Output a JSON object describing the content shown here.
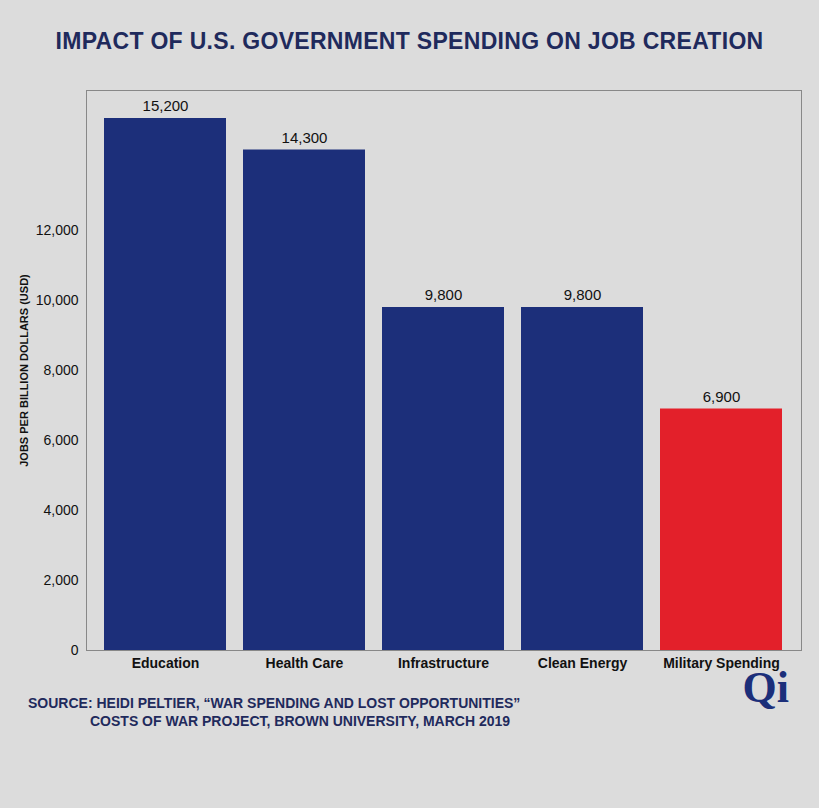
{
  "chart_data": {
    "type": "bar",
    "title": "IMPACT OF U.S. GOVERNMENT SPENDING ON JOB CREATION",
    "y_label": "JOBS PER BILLION DOLLARS (USD)",
    "categories": [
      "Education",
      "Health Care",
      "Infrastructure",
      "Clean Energy",
      "Military Spending"
    ],
    "values": [
      15200,
      14300,
      9800,
      9800,
      6900
    ],
    "value_labels": [
      "15,200",
      "14,300",
      "9,800",
      "9,800",
      "6,900"
    ],
    "colors": [
      "#1c2f7a",
      "#1c2f7a",
      "#1c2f7a",
      "#1c2f7a",
      "#e3202a"
    ],
    "data_labels": true,
    "grid": false,
    "ylim": [
      0,
      16000
    ],
    "yticks": [
      0,
      {
        "value": 2000,
        "label": "2,000"
      },
      {
        "value": 4000,
        "label": "4,000"
      },
      {
        "value": 6000,
        "label": "6,000"
      },
      {
        "value": 8000,
        "label": "8,000"
      },
      {
        "value": 10000,
        "label": "10,000"
      },
      {
        "value": 12000,
        "label": "12,000"
      }
    ],
    "source": [
      "SOURCE: HEIDI PELTIER, “WAR SPENDING AND LOST OPPORTUNITIES”",
      "COSTS OF WAR PROJECT, BROWN UNIVERSITY, MARCH 2019"
    ],
    "logo": "Qi"
  }
}
